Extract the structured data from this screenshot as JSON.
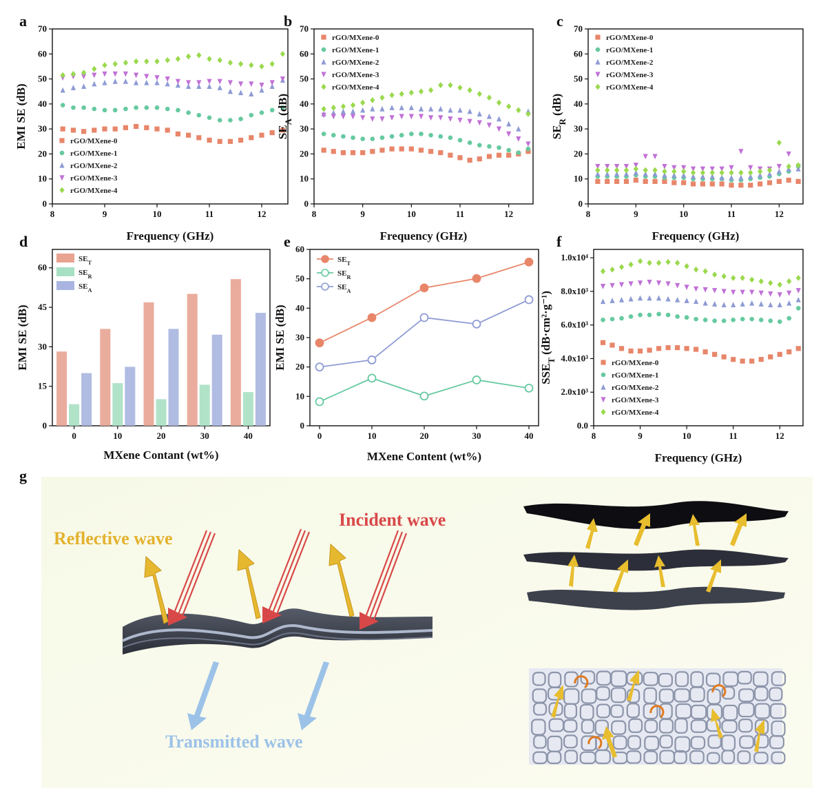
{
  "colors": {
    "s0": "#e8866a",
    "s1": "#66c9a0",
    "s2": "#8e9bd4",
    "s3": "#c071d6",
    "s4": "#9ad94d",
    "bar_T": "#e8a391",
    "bar_R": "#a8e0c3",
    "bar_A": "#a9b5e0",
    "reflect": "#e6b830",
    "incident": "#d84848",
    "transmit": "#9cc2e8"
  },
  "figure": {
    "panel_labels": [
      "a",
      "b",
      "c",
      "d",
      "e",
      "f",
      "g"
    ],
    "g": {
      "reflective_label": "Reflective wave",
      "incident_label": "Incident wave",
      "transmitted_label": "Transmitted wave"
    }
  },
  "chart_data": [
    {
      "id": "a",
      "type": "scatter",
      "xlabel": "Frequency (GHz)",
      "ylabel": "EMI SE (dB)",
      "xlim": [
        8,
        12.5
      ],
      "ylim": [
        0,
        70
      ],
      "xticks": [
        8,
        9,
        10,
        11,
        12
      ],
      "yticks": [
        0,
        10,
        20,
        30,
        40,
        50,
        60,
        70
      ],
      "legend_position": "bottom-left",
      "x": [
        8.2,
        8.4,
        8.6,
        8.8,
        9.0,
        9.2,
        9.4,
        9.6,
        9.8,
        10.0,
        10.2,
        10.4,
        10.6,
        10.8,
        11.0,
        11.2,
        11.4,
        11.6,
        11.8,
        12.0,
        12.2,
        12.4
      ],
      "series": [
        {
          "name": "rGO/MXene-0",
          "marker": "square",
          "values": [
            30,
            29.5,
            29,
            29.5,
            30,
            30,
            30.5,
            31,
            30.5,
            30,
            29.5,
            28,
            27.5,
            26.5,
            25.5,
            25,
            25,
            25.5,
            26.5,
            27.5,
            28.5,
            29.5
          ]
        },
        {
          "name": "rGO/MXene-1",
          "marker": "hexagon",
          "values": [
            39.5,
            38.5,
            38.5,
            38,
            37.5,
            37.5,
            38,
            38.5,
            38.5,
            38.5,
            38,
            37.5,
            36.5,
            35.5,
            34.5,
            33.5,
            33.5,
            34,
            35.5,
            36.5,
            37.5,
            38.5
          ]
        },
        {
          "name": "rGO/MXene-2",
          "marker": "triangle-up",
          "values": [
            45.5,
            46.5,
            47,
            48,
            48.5,
            49,
            49,
            48.5,
            48.5,
            48.5,
            48,
            47.5,
            47,
            47,
            47,
            46.5,
            45,
            44.5,
            44,
            45.5,
            47,
            49.5
          ]
        },
        {
          "name": "rGO/MXene-3",
          "marker": "triangle-down",
          "values": [
            50.5,
            51,
            51,
            51.5,
            52,
            52,
            52,
            51.5,
            51,
            50.5,
            50,
            49,
            48.5,
            48.5,
            49,
            49,
            48.5,
            48,
            48,
            47.5,
            48.5,
            50
          ]
        },
        {
          "name": "rGO/MXene-4",
          "marker": "diamond",
          "values": [
            51.5,
            52,
            52.5,
            54,
            55.5,
            56,
            56.5,
            57,
            57,
            57,
            57.5,
            58,
            59,
            59.5,
            58,
            57.5,
            56.5,
            56,
            55.5,
            55,
            56,
            60
          ]
        }
      ]
    },
    {
      "id": "b",
      "type": "scatter",
      "xlabel": "Frequency (GHz)",
      "ylabel_main": "SE",
      "ylabel_sub": "A",
      "ylabel_tail": " (dB)",
      "xlim": [
        8,
        12.5
      ],
      "ylim": [
        0,
        70
      ],
      "xticks": [
        8,
        9,
        10,
        11,
        12
      ],
      "yticks": [
        0,
        10,
        20,
        30,
        40,
        50,
        60,
        70
      ],
      "legend_position": "top-left",
      "x": [
        8.2,
        8.4,
        8.6,
        8.8,
        9.0,
        9.2,
        9.4,
        9.6,
        9.8,
        10.0,
        10.2,
        10.4,
        10.6,
        10.8,
        11.0,
        11.2,
        11.4,
        11.6,
        11.8,
        12.0,
        12.2,
        12.4
      ],
      "series": [
        {
          "name": "rGO/MXene-0",
          "marker": "square",
          "values": [
            21.5,
            21,
            20.5,
            20.5,
            20.5,
            21,
            21.5,
            22,
            22,
            22,
            21.5,
            21,
            20.5,
            19.5,
            18.5,
            17.5,
            18,
            19,
            19.5,
            19.5,
            20,
            21
          ]
        },
        {
          "name": "rGO/MXene-1",
          "marker": "hexagon",
          "values": [
            28,
            27.5,
            27,
            26.5,
            26,
            26,
            26.5,
            27,
            27.5,
            28,
            28,
            27.5,
            27,
            26.5,
            25.5,
            24.5,
            23.5,
            23,
            22.5,
            21.5,
            20.5,
            22
          ]
        },
        {
          "name": "rGO/MXene-2",
          "marker": "triangle-up",
          "values": [
            36,
            36.5,
            37,
            37,
            37.5,
            38,
            38,
            38.5,
            38.5,
            38.5,
            38,
            38,
            38,
            37.5,
            37.5,
            37,
            36,
            35,
            34,
            32,
            30,
            37
          ]
        },
        {
          "name": "rGO/MXene-3",
          "marker": "triangle-down",
          "values": [
            35.5,
            35,
            35,
            35,
            34.5,
            34,
            34,
            34.5,
            35,
            35,
            35,
            34.5,
            34.5,
            34,
            33.5,
            33,
            32.5,
            31.5,
            30,
            28,
            26,
            24
          ]
        },
        {
          "name": "rGO/MXene-4",
          "marker": "diamond",
          "values": [
            38,
            38.5,
            39,
            39.5,
            40.5,
            41.5,
            42.5,
            43.5,
            44,
            44.5,
            45,
            45.5,
            47.5,
            47.5,
            46.5,
            45.5,
            44,
            42.5,
            40.5,
            39,
            37.5,
            36
          ]
        }
      ]
    },
    {
      "id": "c",
      "type": "scatter",
      "xlabel": "Frequency (GHz)",
      "ylabel_main": "SE",
      "ylabel_sub": "R",
      "ylabel_tail": " (dB)",
      "xlim": [
        8,
        12.5
      ],
      "ylim": [
        0,
        70
      ],
      "xticks": [
        8,
        9,
        10,
        11,
        12
      ],
      "yticks": [
        0,
        10,
        20,
        30,
        40,
        50,
        60,
        70
      ],
      "legend_position": "top-left",
      "x": [
        8.2,
        8.4,
        8.6,
        8.8,
        9.0,
        9.2,
        9.4,
        9.6,
        9.8,
        10.0,
        10.2,
        10.4,
        10.6,
        10.8,
        11.0,
        11.2,
        11.4,
        11.6,
        11.8,
        12.0,
        12.2,
        12.4
      ],
      "series": [
        {
          "name": "rGO/MXene-0",
          "marker": "square",
          "values": [
            9,
            9,
            9,
            9,
            9.5,
            9,
            9,
            9,
            8.5,
            8.5,
            8,
            8,
            8,
            8,
            7.5,
            7.5,
            7.5,
            8,
            8.5,
            9,
            9.5,
            9
          ]
        },
        {
          "name": "rGO/MXene-1",
          "marker": "hexagon",
          "values": [
            11,
            11,
            11,
            11,
            11.5,
            11,
            11,
            10.5,
            10.5,
            10.5,
            10,
            10,
            10,
            10,
            9.5,
            9.5,
            10,
            10.5,
            11,
            12,
            13,
            15
          ]
        },
        {
          "name": "rGO/MXene-2",
          "marker": "triangle-up",
          "values": [
            12,
            12,
            12,
            12,
            12.5,
            12,
            12,
            11.5,
            11.5,
            11.5,
            11,
            11,
            11,
            10.5,
            10.5,
            10.5,
            11,
            11.5,
            12,
            13,
            14,
            14
          ]
        },
        {
          "name": "rGO/MXene-3",
          "marker": "triangle-down",
          "values": [
            15,
            15,
            15,
            15,
            15.5,
            19,
            19,
            15,
            14.5,
            14.5,
            14,
            14,
            14,
            14,
            14.5,
            21,
            14.5,
            14,
            14,
            15,
            20,
            15
          ]
        },
        {
          "name": "rGO/MXene-4",
          "marker": "diamond",
          "values": [
            13.5,
            13.5,
            13.5,
            13.5,
            14,
            13.5,
            13.5,
            13,
            13,
            13,
            12.5,
            12.5,
            12.5,
            12.5,
            12.5,
            12.5,
            12.5,
            13,
            13.5,
            24.5,
            15,
            15.5
          ]
        }
      ]
    },
    {
      "id": "d",
      "type": "bar",
      "xlabel": "MXene Contant (wt%)",
      "ylabel": "EMI SE (dB)",
      "ylim": [
        0,
        67
      ],
      "yticks": [
        0,
        15,
        30,
        45,
        60
      ],
      "categories": [
        "0",
        "10",
        "20",
        "30",
        "40"
      ],
      "legend_position": "top-left",
      "series": [
        {
          "name_main": "SE",
          "name_sub": "T",
          "values": [
            28.2,
            36.8,
            46.9,
            50.1,
            55.7
          ]
        },
        {
          "name_main": "SE",
          "name_sub": "R",
          "values": [
            8.2,
            16.2,
            10.1,
            15.6,
            12.8
          ]
        },
        {
          "name_main": "SE",
          "name_sub": "A",
          "values": [
            20.0,
            22.4,
            36.8,
            34.6,
            42.9
          ]
        }
      ]
    },
    {
      "id": "e",
      "type": "line",
      "xlabel": "MXene Content (wt%)",
      "ylabel": "EMI SE (dB)",
      "xlim": [
        0,
        40
      ],
      "ylim": [
        0,
        60
      ],
      "xticks": [
        0,
        10,
        20,
        30,
        40
      ],
      "yticks": [
        0,
        10,
        20,
        30,
        40,
        50,
        60
      ],
      "legend_position": "top-left",
      "x": [
        0,
        10,
        20,
        30,
        40
      ],
      "series": [
        {
          "name_main": "SE",
          "name_sub": "T",
          "filled": true,
          "values": [
            28.2,
            36.8,
            46.9,
            50.1,
            55.7
          ]
        },
        {
          "name_main": "SE",
          "name_sub": "R",
          "filled": false,
          "values": [
            8.2,
            16.2,
            10.1,
            15.6,
            12.8
          ]
        },
        {
          "name_main": "SE",
          "name_sub": "A",
          "filled": false,
          "values": [
            20.0,
            22.4,
            36.8,
            34.6,
            42.9
          ]
        }
      ]
    },
    {
      "id": "f",
      "type": "scatter",
      "xlabel": "Frequency (GHz)",
      "ylabel_main": "SSE",
      "ylabel_sub": "T",
      "ylabel_tail": " (dB·cm²·g⁻¹)",
      "xlim": [
        8,
        12.5
      ],
      "ylim": [
        0,
        10500
      ],
      "xticks": [
        8,
        9,
        10,
        11,
        12
      ],
      "yticks": [
        0,
        2000,
        4000,
        6000,
        8000,
        10000
      ],
      "ytick_labels": [
        "0.0",
        "2.0x10³",
        "4.0x10³",
        "6.0x10³",
        "8.0x10³",
        "1.0x10⁴"
      ],
      "legend_position": "bottom-left",
      "x": [
        8.2,
        8.4,
        8.6,
        8.8,
        9.0,
        9.2,
        9.4,
        9.6,
        9.8,
        10.0,
        10.2,
        10.4,
        10.6,
        10.8,
        11.0,
        11.2,
        11.4,
        11.6,
        11.8,
        12.0,
        12.2,
        12.4
      ],
      "series": [
        {
          "name": "rGO/MXene-0",
          "marker": "square",
          "values": [
            4950,
            4800,
            4600,
            4450,
            4450,
            4500,
            4600,
            4650,
            4650,
            4600,
            4550,
            4400,
            4250,
            4100,
            3950,
            3850,
            3850,
            3950,
            4100,
            4250,
            4400,
            4600
          ]
        },
        {
          "name": "rGO/MXene-1",
          "marker": "hexagon",
          "values": [
            6300,
            6350,
            6400,
            6500,
            6600,
            6600,
            6650,
            6600,
            6500,
            6450,
            6350,
            6300,
            6250,
            6250,
            6300,
            6350,
            6350,
            6300,
            6250,
            6200,
            6400,
            7000
          ]
        },
        {
          "name": "rGO/MXene-2",
          "marker": "triangle-up",
          "values": [
            7400,
            7450,
            7500,
            7550,
            7600,
            7600,
            7600,
            7550,
            7500,
            7450,
            7400,
            7300,
            7250,
            7200,
            7200,
            7250,
            7300,
            7250,
            7200,
            7200,
            7300,
            7500
          ]
        },
        {
          "name": "rGO/MXene-3",
          "marker": "triangle-down",
          "values": [
            8300,
            8350,
            8400,
            8450,
            8500,
            8550,
            8500,
            8450,
            8350,
            8250,
            8150,
            8100,
            8050,
            8000,
            7950,
            7950,
            7950,
            7900,
            7850,
            7800,
            7900,
            8050
          ]
        },
        {
          "name": "rGO/MXene-4",
          "marker": "diamond",
          "values": [
            9200,
            9300,
            9450,
            9600,
            9800,
            9700,
            9700,
            9750,
            9700,
            9500,
            9300,
            9200,
            9000,
            8900,
            8800,
            8800,
            8700,
            8600,
            8500,
            8400,
            8600,
            8800
          ]
        }
      ]
    }
  ]
}
